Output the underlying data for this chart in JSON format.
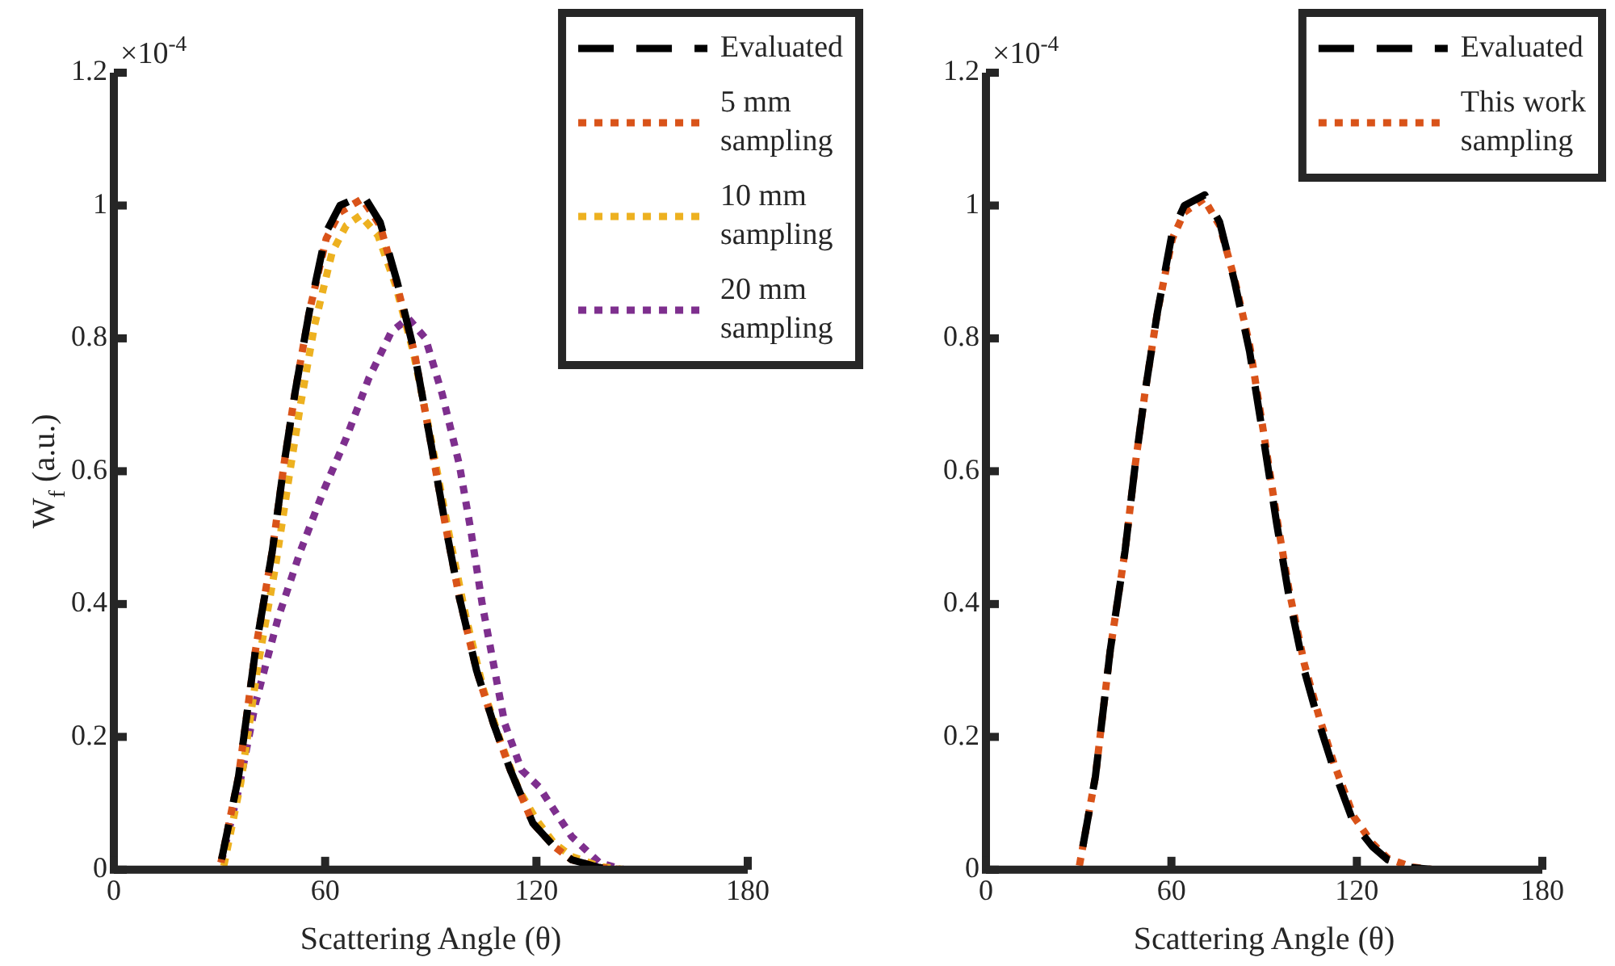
{
  "chart_data": [
    {
      "type": "line",
      "xlabel": "Scattering Angle (θ)",
      "ylabel": "W$_{f}$ (a.u.)",
      "annotations": [
        "×10$^{-4}$"
      ],
      "xlim": [
        0,
        180
      ],
      "ylim": [
        0,
        1.2
      ],
      "xticks": [
        0,
        60,
        120,
        180
      ],
      "yticks": [
        0,
        0.2,
        0.4,
        0.6,
        0.8,
        1,
        1.2
      ],
      "legend": "top right",
      "marker": "none",
      "series": [
        {
          "name": "Evaluated",
          "color": "#000000",
          "line_style": "dashed",
          "x": [
            0,
            30,
            35.4,
            40.2,
            45,
            48.3,
            51.5,
            55.5,
            60.3,
            64.2,
            70.8,
            75.6,
            80.4,
            85.3,
            90.1,
            94.1,
            98.1,
            103,
            107.8,
            112.6,
            119,
            125,
            130,
            138,
            145,
            180
          ],
          "values": [
            0,
            0,
            0.14,
            0.33,
            0.48,
            0.61,
            0.72,
            0.84,
            0.96,
            1,
            1.016,
            0.975,
            0.886,
            0.78,
            0.64,
            0.52,
            0.41,
            0.3,
            0.22,
            0.15,
            0.07,
            0.035,
            0.015,
            0.003,
            0,
            0
          ]
        },
        {
          "name": "5 mm sampling",
          "color": "#d95319",
          "line_style": "dotted",
          "x": [
            0,
            30,
            35.4,
            40.2,
            45,
            48.3,
            51.5,
            55.5,
            60.3,
            64.2,
            70.5,
            75.6,
            80.4,
            85.3,
            90.1,
            94.1,
            98.1,
            103,
            107.8,
            112.6,
            119,
            125,
            130,
            138,
            145,
            180
          ],
          "values": [
            0,
            0,
            0.14,
            0.33,
            0.48,
            0.61,
            0.72,
            0.84,
            0.95,
            0.99,
            1.01,
            0.97,
            0.88,
            0.78,
            0.64,
            0.52,
            0.41,
            0.3,
            0.22,
            0.15,
            0.07,
            0.035,
            0.015,
            0.003,
            0,
            0
          ]
        },
        {
          "name": "10 mm sampling",
          "color": "#edb120",
          "line_style": "dotted",
          "x": [
            0,
            31,
            36,
            41,
            46,
            50,
            53,
            57,
            62,
            66,
            70,
            75,
            80,
            85,
            90,
            95,
            100,
            105,
            110,
            115,
            120,
            125,
            130,
            138,
            145,
            180
          ],
          "values": [
            0,
            0,
            0.13,
            0.31,
            0.46,
            0.6,
            0.7,
            0.82,
            0.93,
            0.97,
            0.985,
            0.955,
            0.88,
            0.78,
            0.65,
            0.51,
            0.38,
            0.27,
            0.19,
            0.12,
            0.075,
            0.04,
            0.02,
            0.005,
            0,
            0
          ]
        },
        {
          "name": "20 mm sampling",
          "color": "#7e2f8e",
          "line_style": "dotted",
          "x": [
            0,
            30,
            35.4,
            40.2,
            46.7,
            53,
            59.5,
            66,
            72.4,
            78.8,
            83.6,
            88.5,
            93.3,
            98.1,
            101.4,
            104.6,
            107.8,
            111,
            115.8,
            120.7,
            125,
            130,
            138,
            145,
            180
          ],
          "values": [
            0,
            0,
            0.12,
            0.25,
            0.38,
            0.48,
            0.57,
            0.65,
            0.74,
            0.81,
            0.83,
            0.8,
            0.715,
            0.61,
            0.51,
            0.4,
            0.31,
            0.22,
            0.15,
            0.125,
            0.09,
            0.05,
            0.01,
            0,
            0
          ]
        }
      ]
    },
    {
      "type": "line",
      "xlabel": "Scattering Angle (θ)",
      "annotations": [
        "×10$^{-4}$"
      ],
      "xlim": [
        0,
        180
      ],
      "ylim": [
        0,
        1.2
      ],
      "xticks": [
        0,
        60,
        120,
        180
      ],
      "yticks": [
        0,
        0.2,
        0.4,
        0.6,
        0.8,
        1,
        1.2
      ],
      "legend": "top right",
      "marker": "none",
      "series": [
        {
          "name": "Evaluated",
          "color": "#000000",
          "line_style": "dashed",
          "x": [
            0,
            30,
            35.4,
            40.2,
            45,
            48.3,
            51.5,
            55.5,
            60.3,
            64.2,
            70.8,
            75.6,
            80.4,
            85.3,
            90.1,
            94.1,
            98.1,
            103,
            107.8,
            112.6,
            119,
            125,
            130,
            138,
            145,
            180
          ],
          "values": [
            0,
            0,
            0.14,
            0.33,
            0.48,
            0.61,
            0.72,
            0.84,
            0.96,
            1,
            1.016,
            0.975,
            0.886,
            0.78,
            0.64,
            0.52,
            0.41,
            0.3,
            0.22,
            0.15,
            0.07,
            0.035,
            0.015,
            0.003,
            0,
            0
          ]
        },
        {
          "name": "This work sampling",
          "color": "#d95319",
          "line_style": "dotted",
          "x": [
            0,
            30,
            35.4,
            40.2,
            45,
            48.3,
            51.5,
            55.5,
            60.3,
            64.2,
            70.5,
            75.6,
            80.4,
            85.3,
            90.1,
            94.1,
            98.1,
            103,
            107.8,
            112.6,
            119,
            125,
            130,
            138,
            145,
            180
          ],
          "values": [
            0,
            0,
            0.14,
            0.33,
            0.48,
            0.61,
            0.72,
            0.84,
            0.95,
            0.99,
            1.01,
            0.97,
            0.89,
            0.79,
            0.65,
            0.53,
            0.42,
            0.31,
            0.23,
            0.16,
            0.08,
            0.04,
            0.017,
            0.004,
            0,
            0
          ]
        }
      ]
    }
  ]
}
